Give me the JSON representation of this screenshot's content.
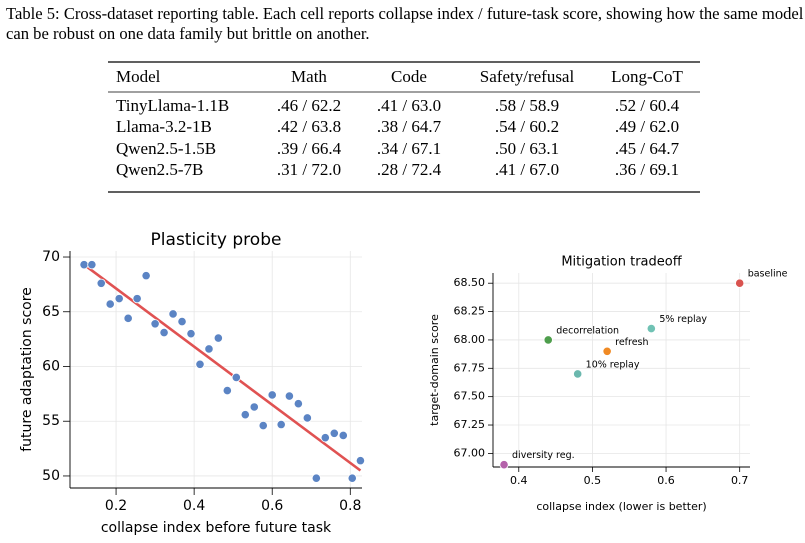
{
  "caption": "Table 5: Cross-dataset reporting table. Each cell reports collapse index / future-task score, showing how the same model can be robust on one data family but brittle on another.",
  "table": {
    "header": [
      "Model",
      "Math",
      "Code",
      "Safety/refusal",
      "Long-CoT"
    ],
    "rows": [
      [
        "TinyLlama-1.1B",
        ".46 / 62.2",
        ".41 / 63.0",
        ".58 / 58.9",
        ".52 / 60.4"
      ],
      [
        "Llama-3.2-1B",
        ".42 / 63.8",
        ".38 / 64.7",
        ".54 / 60.2",
        ".49 / 62.0"
      ],
      [
        "Qwen2.5-1.5B",
        ".39 / 66.4",
        ".34 / 67.1",
        ".50 / 63.1",
        ".45 / 64.7"
      ],
      [
        "Qwen2.5-7B",
        ".31 / 72.0",
        ".28 / 72.4",
        ".41 / 67.0",
        ".36 / 69.1"
      ]
    ]
  },
  "chart_data": [
    {
      "type": "scatter",
      "title": "Plasticity probe",
      "x_label": "collapse index before future task",
      "y_label": "future adaptation score",
      "color": "#5b84c4",
      "grid": true,
      "x": [
        0.118,
        0.138,
        0.162,
        0.185,
        0.208,
        0.231,
        0.254,
        0.277,
        0.3,
        0.323,
        0.346,
        0.369,
        0.392,
        0.415,
        0.438,
        0.462,
        0.485,
        0.508,
        0.531,
        0.554,
        0.577,
        0.6,
        0.623,
        0.644,
        0.667,
        0.69,
        0.713,
        0.736,
        0.759,
        0.782,
        0.805,
        0.826
      ],
      "values": [
        69.3,
        69.3,
        67.6,
        65.7,
        66.2,
        64.4,
        66.2,
        68.3,
        63.9,
        63.1,
        64.8,
        64.1,
        63.0,
        60.2,
        61.6,
        62.6,
        57.8,
        59.0,
        55.6,
        56.3,
        54.6,
        57.4,
        54.7,
        57.3,
        56.6,
        55.3,
        49.8,
        53.5,
        53.9,
        53.7,
        49.8,
        51.4
      ],
      "fit": {
        "x": [
          0.118,
          0.826
        ],
        "values": [
          69.3,
          50.5
        ],
        "color": "#e05252"
      },
      "xlim": [
        0.082,
        0.83
      ],
      "ylim": [
        48.9,
        70.55
      ],
      "xticks": [
        0.2,
        0.4,
        0.6,
        0.8
      ],
      "yticks": [
        50,
        55,
        60,
        65,
        70
      ]
    },
    {
      "type": "scatter",
      "title": "Mitigation tradeoff",
      "x_label": "collapse index (lower is better)",
      "y_label": "target-domain score",
      "grid": true,
      "x": [
        0.38,
        0.48,
        0.44,
        0.52,
        0.58,
        0.7
      ],
      "values": [
        66.9,
        67.7,
        68.0,
        67.9,
        68.1,
        68.5
      ],
      "labels": [
        "diversity reg.",
        "10% replay",
        "decorrelation",
        "refresh",
        "5% replay",
        "baseline"
      ],
      "colors": [
        "#b462aa",
        "#6bb8ae",
        "#4e9e4c",
        "#f08a24",
        "#70c2b4",
        "#d9534f"
      ],
      "xlim": [
        0.365,
        0.714
      ],
      "ylim": [
        66.88,
        68.59
      ],
      "xticks": [
        0.4,
        0.5,
        0.6,
        0.7
      ],
      "yticks": [
        {
          "value": 67.0,
          "label": "67.00"
        },
        {
          "value": 67.25,
          "label": "67.25"
        },
        {
          "value": 67.5,
          "label": "67.50"
        },
        {
          "value": 67.75,
          "label": "67.75"
        },
        {
          "value": 68.0,
          "label": "68.00"
        },
        {
          "value": 68.25,
          "label": "68.25"
        },
        {
          "value": 68.5,
          "label": "68.50"
        }
      ]
    }
  ]
}
